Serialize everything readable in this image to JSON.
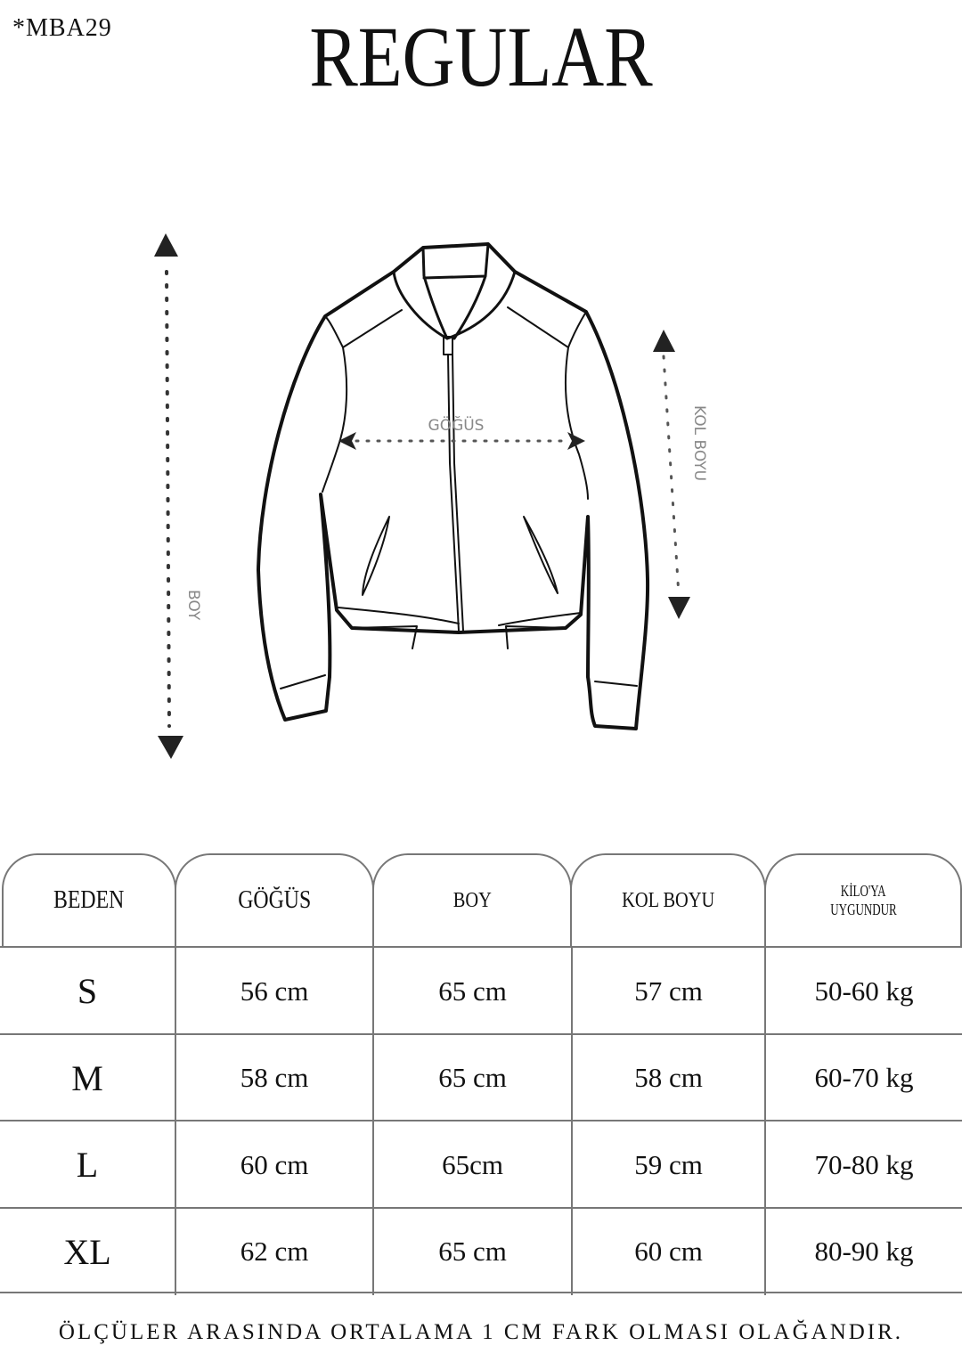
{
  "product_code": "*MBA29",
  "fit_title": "REGULAR",
  "diagram": {
    "chest_label": "GÖĞÜS",
    "length_label": "BOY",
    "sleeve_label": "KOL BOYU"
  },
  "table": {
    "headers": [
      "BEDEN",
      "GÖĞÜS",
      "BOY",
      "KOL BOYU",
      "KİLO'YA UYGUNDUR"
    ],
    "header_weight_line1": "KİLO'YA",
    "header_weight_line2": "UYGUNDUR",
    "rows": [
      {
        "size": "S",
        "chest": "56 cm",
        "length": "65 cm",
        "sleeve": "57  cm",
        "weight": "50-60 kg"
      },
      {
        "size": "M",
        "chest": "58 cm",
        "length": "65 cm",
        "sleeve": "58 cm",
        "weight": "60-70 kg"
      },
      {
        "size": "L",
        "chest": "60 cm",
        "length": "65cm",
        "sleeve": "59 cm",
        "weight": "70-80 kg"
      },
      {
        "size": "XL",
        "chest": "62 cm",
        "length": "65 cm",
        "sleeve": "60 cm",
        "weight": "80-90 kg"
      }
    ]
  },
  "footnote": "ÖLÇÜLER ARASINDA ORTALAMA 1 CM FARK OLMASI OLAĞANDIR."
}
